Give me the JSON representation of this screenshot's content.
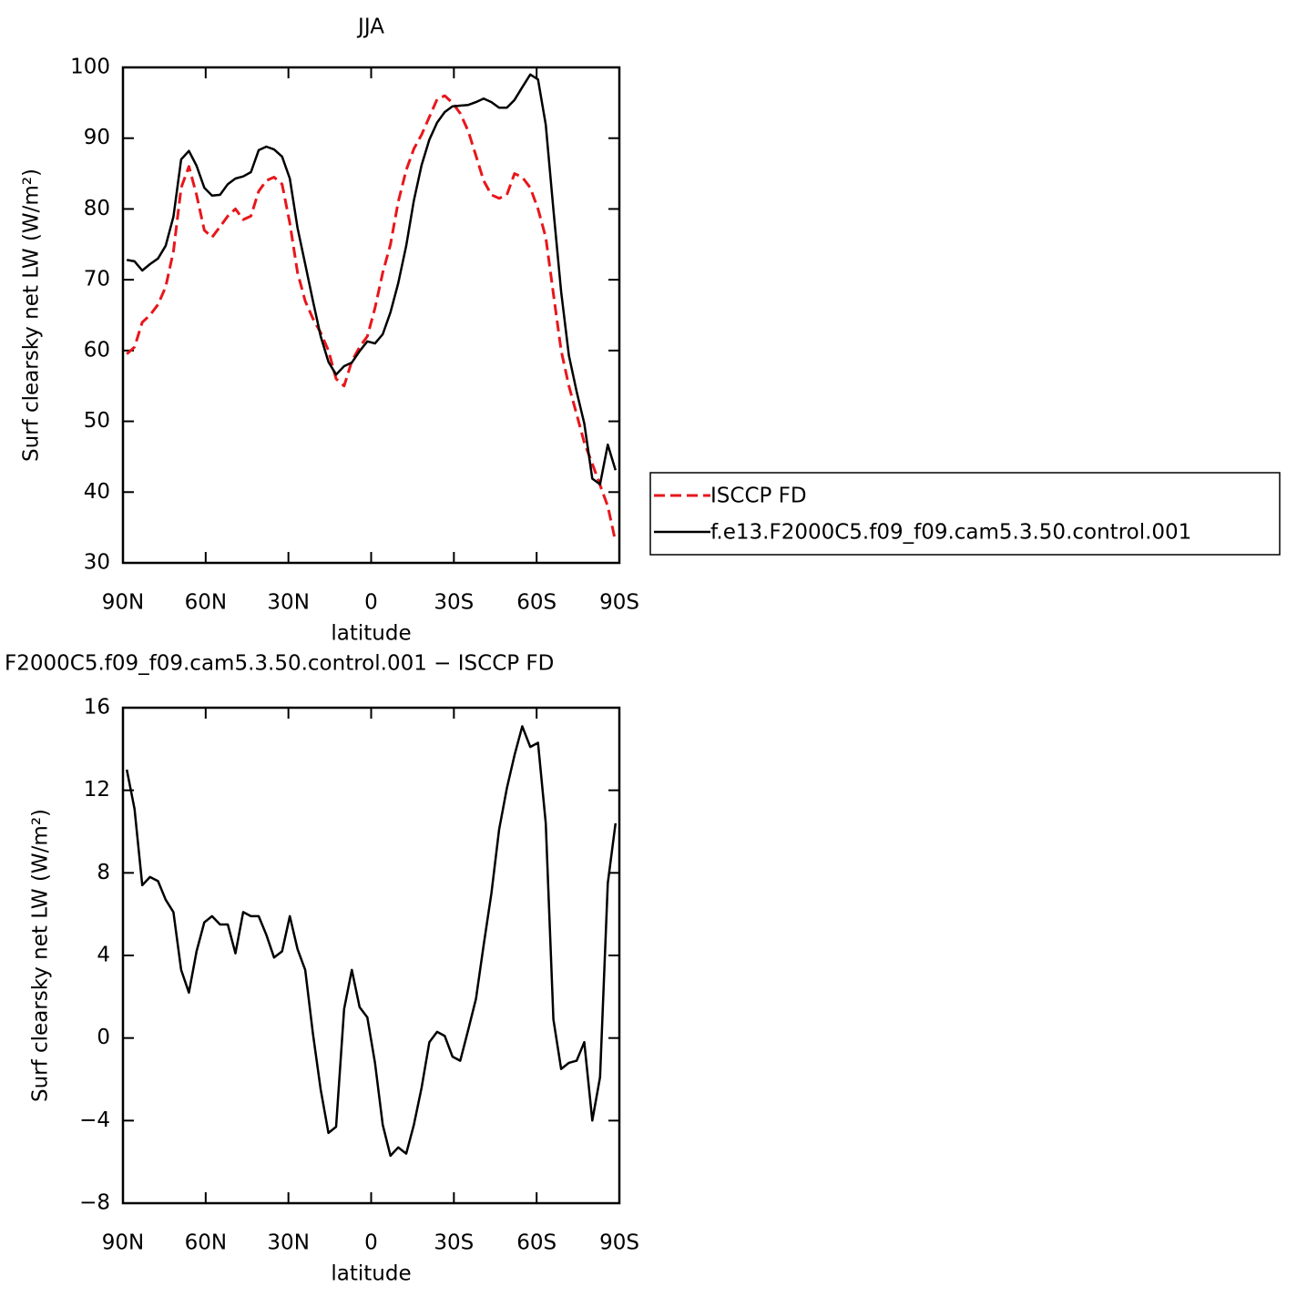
{
  "chart_data": [
    {
      "type": "line",
      "title": "JJA",
      "xlabel": "latitude",
      "ylabel": "Surf clearsky net LW (W/m²)",
      "x": [
        88.6,
        85.8,
        83.0,
        80.2,
        77.3,
        74.5,
        71.7,
        68.9,
        66.1,
        63.3,
        60.5,
        57.7,
        54.8,
        52.0,
        49.2,
        46.4,
        43.6,
        40.8,
        38.0,
        35.2,
        32.3,
        29.5,
        26.7,
        23.9,
        21.1,
        18.3,
        15.5,
        12.7,
        9.8,
        7.0,
        4.2,
        1.4,
        -1.4,
        -4.2,
        -7.0,
        -9.8,
        -12.7,
        -15.5,
        -18.3,
        -21.1,
        -23.9,
        -26.7,
        -29.5,
        -32.3,
        -35.2,
        -38.0,
        -40.8,
        -43.6,
        -46.4,
        -49.2,
        -52.0,
        -54.8,
        -57.7,
        -60.5,
        -63.3,
        -66.1,
        -68.9,
        -71.7,
        -74.5,
        -77.3,
        -80.2,
        -83.0,
        -85.8,
        -88.6
      ],
      "xlim": [
        90,
        -90
      ],
      "xticks": [
        {
          "value": 90,
          "label": "90N"
        },
        {
          "value": 60,
          "label": "60N"
        },
        {
          "value": 30,
          "label": "30N"
        },
        0,
        {
          "value": -30,
          "label": "30S"
        },
        {
          "value": -60,
          "label": "60S"
        },
        {
          "value": -90,
          "label": "90S"
        }
      ],
      "ylim": [
        30,
        100
      ],
      "yticks": [
        30,
        40,
        50,
        60,
        70,
        80,
        90,
        100
      ],
      "series": [
        {
          "name": "ISCCP FD",
          "color": "#e8161b",
          "dashed": true,
          "values": [
            59.5,
            60.5,
            64,
            65,
            66.5,
            69,
            74,
            83,
            86,
            82,
            77,
            76,
            77.5,
            79,
            80,
            78.5,
            79,
            82.5,
            84,
            84.5,
            83.5,
            78,
            71,
            67,
            64.5,
            62.5,
            60,
            56,
            55,
            58.5,
            60.5,
            62,
            66,
            71,
            75,
            81,
            85.5,
            88.5,
            90.5,
            93,
            95.5,
            96,
            95,
            93.5,
            91,
            87.5,
            84,
            82,
            81.5,
            82,
            85,
            84.5,
            83,
            80,
            76,
            68,
            60,
            55,
            51,
            47,
            44,
            41,
            38,
            33
          ]
        },
        {
          "name": "f.e13.F2000C5.f09_f09.cam5.3.50.control.001",
          "color": "#000000",
          "dashed": false,
          "values": [
            72.8,
            72.6,
            71.3,
            72.2,
            73.0,
            74.8,
            78.9,
            87.0,
            88.2,
            86.1,
            83.0,
            81.9,
            82.0,
            83.5,
            84.3,
            84.6,
            85.2,
            88.3,
            88.8,
            88.4,
            87.4,
            84.3,
            77.3,
            72.2,
            67.0,
            62.0,
            58.4,
            56.6,
            57.8,
            58.3,
            59.9,
            61.3,
            61.0,
            62.3,
            65.4,
            69.5,
            74.8,
            81.2,
            86.2,
            89.8,
            92.2,
            93.7,
            94.5,
            94.6,
            94.7,
            95.1,
            95.6,
            95.1,
            94.3,
            94.3,
            95.4,
            97.2,
            99.0,
            98.3,
            91.9,
            79.9,
            68.3,
            59.3,
            54.2,
            49.7,
            41.9,
            41.1,
            46.7,
            43.1
          ]
        }
      ]
    },
    {
      "type": "line",
      "title": "F2000C5.f09_f09.cam5.3.50.control.001 − ISCCP FD",
      "xlabel": "latitude",
      "ylabel": "Surf clearsky net LW (W/m²)",
      "x": [
        88.6,
        85.8,
        83.0,
        80.2,
        77.3,
        74.5,
        71.7,
        68.9,
        66.1,
        63.3,
        60.5,
        57.7,
        54.8,
        52.0,
        49.2,
        46.4,
        43.6,
        40.8,
        38.0,
        35.2,
        32.3,
        29.5,
        26.7,
        23.9,
        21.1,
        18.3,
        15.5,
        12.7,
        9.8,
        7.0,
        4.2,
        1.4,
        -1.4,
        -4.2,
        -7.0,
        -9.8,
        -12.7,
        -15.5,
        -18.3,
        -21.1,
        -23.9,
        -26.7,
        -29.5,
        -32.3,
        -35.2,
        -38.0,
        -40.8,
        -43.6,
        -46.4,
        -49.2,
        -52.0,
        -54.8,
        -57.7,
        -60.5,
        -63.3,
        -66.1,
        -68.9,
        -71.7,
        -74.5,
        -77.3,
        -80.2,
        -83.0,
        -85.8,
        -88.6
      ],
      "xlim": [
        90,
        -90
      ],
      "xticks": [
        {
          "value": 90,
          "label": "90N"
        },
        {
          "value": 60,
          "label": "60N"
        },
        {
          "value": 30,
          "label": "30N"
        },
        0,
        {
          "value": -30,
          "label": "30S"
        },
        {
          "value": -60,
          "label": "60S"
        },
        {
          "value": -90,
          "label": "90S"
        }
      ],
      "ylim": [
        -8,
        16
      ],
      "yticks": [
        {
          "value": -8,
          "label": "−8"
        },
        {
          "value": -4,
          "label": "−4"
        },
        0,
        4,
        8,
        12,
        16
      ],
      "series": [
        {
          "color": "#000000",
          "dashed": false,
          "values": [
            13.0,
            11.1,
            7.4,
            7.8,
            7.6,
            6.7,
            6.1,
            3.3,
            2.2,
            4.2,
            5.6,
            5.9,
            5.5,
            5.5,
            4.1,
            6.1,
            5.9,
            5.9,
            5.0,
            3.9,
            4.2,
            5.9,
            4.3,
            3.3,
            0.2,
            -2.5,
            -4.6,
            -4.3,
            1.4,
            3.3,
            1.5,
            1.0,
            -1.2,
            -4.2,
            -5.7,
            -5.3,
            -5.6,
            -4.2,
            -2.4,
            -0.2,
            0.3,
            0.1,
            -0.9,
            -1.1,
            0.4,
            1.9,
            4.5,
            7.0,
            10.1,
            12.1,
            13.7,
            15.1,
            14.1,
            14.3,
            10.4,
            0.9,
            -1.5,
            -1.2,
            -1.1,
            -0.2,
            -4.0,
            -1.9,
            7.5,
            10.4
          ]
        }
      ]
    }
  ]
}
